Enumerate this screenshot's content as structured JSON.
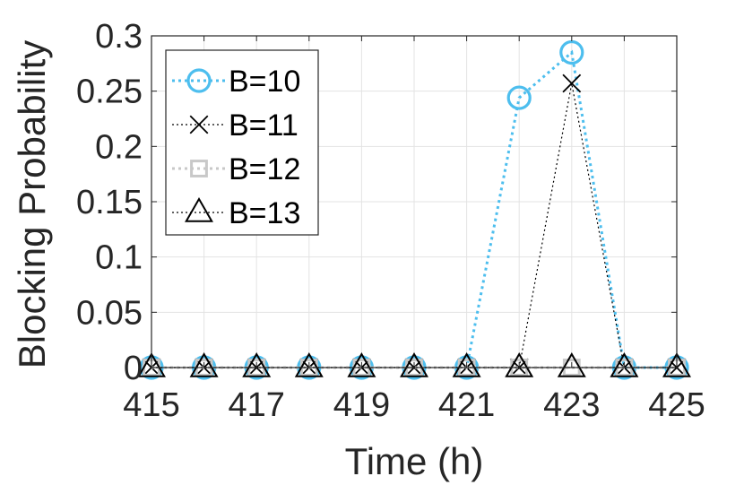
{
  "chart_data": {
    "type": "line",
    "xlabel": "Time (h)",
    "ylabel": "Blocking Probability",
    "xlim": [
      415,
      425
    ],
    "ylim": [
      0,
      0.3
    ],
    "xticks": [
      415,
      417,
      419,
      421,
      423,
      425
    ],
    "xtick_labels": [
      "415",
      "417",
      "419",
      "421",
      "423",
      "425"
    ],
    "yticks": [
      0,
      0.05,
      0.1,
      0.15,
      0.2,
      0.25,
      0.3
    ],
    "ytick_labels": [
      "0",
      "0.05",
      "0.1",
      "0.15",
      "0.2",
      "0.25",
      "0.3"
    ],
    "grid": true,
    "legend_position": "top-left",
    "x": [
      415,
      416,
      417,
      418,
      419,
      420,
      421,
      422,
      423,
      424,
      425
    ],
    "series": [
      {
        "name": "B=10",
        "values": [
          0,
          0,
          0,
          0,
          0,
          0,
          0,
          0.244,
          0.285,
          0,
          0
        ],
        "color": "#4DBEEE",
        "marker": "circle",
        "line": "dotted"
      },
      {
        "name": "B=11",
        "values": [
          0,
          0,
          0,
          0,
          0,
          0,
          0,
          0,
          0.257,
          0,
          0
        ],
        "color": "#000000",
        "marker": "x",
        "line": "dotted"
      },
      {
        "name": "B=12",
        "values": [
          0,
          0,
          0,
          0,
          0,
          0,
          0,
          0,
          0,
          0,
          0
        ],
        "color": "#C8C8C8",
        "marker": "square",
        "line": "dotted"
      },
      {
        "name": "B=13",
        "values": [
          0,
          0,
          0,
          0,
          0,
          0,
          0,
          0,
          0,
          0,
          0
        ],
        "color": "#000000",
        "marker": "triangle",
        "line": "dotted"
      }
    ]
  }
}
